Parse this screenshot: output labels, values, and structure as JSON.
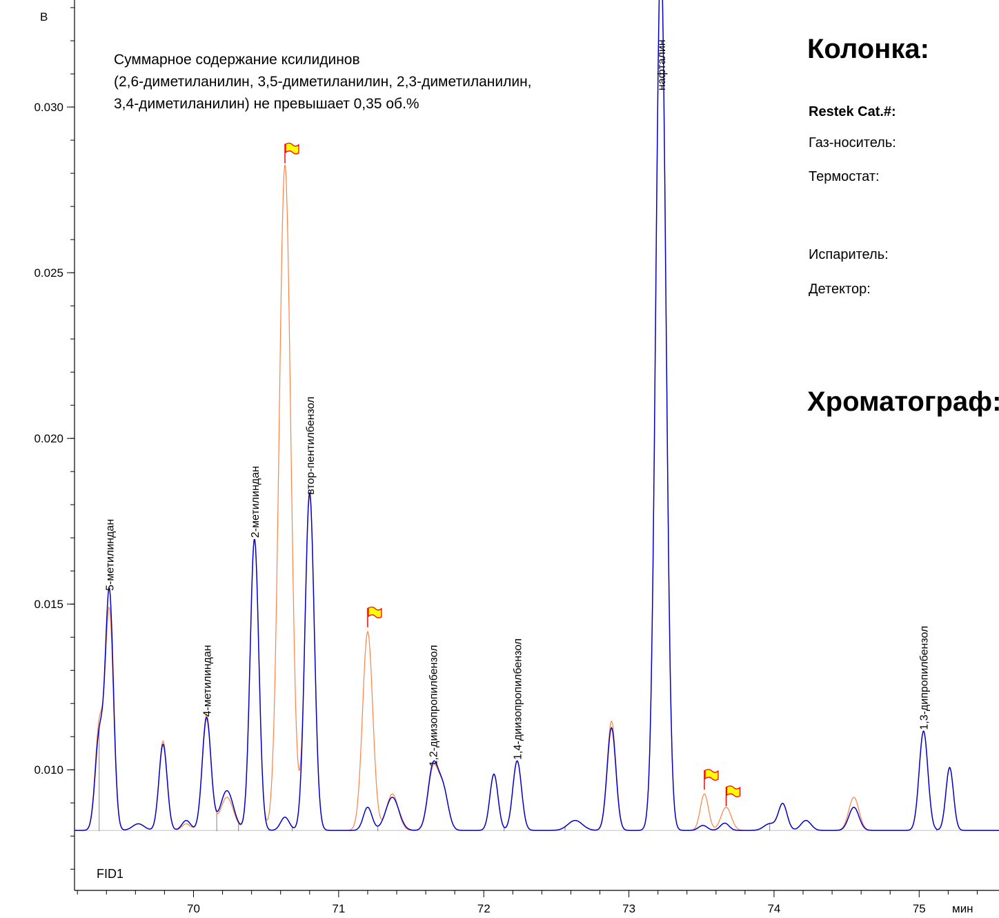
{
  "chart_data": {
    "type": "line",
    "title": "",
    "detector": "FID1",
    "ylabel": "В",
    "xlabel": "мин",
    "xlim": [
      69.18,
      75.55
    ],
    "ylim": [
      0.00636,
      0.03323
    ],
    "x_ticks": [
      70,
      71,
      72,
      73,
      74,
      75
    ],
    "y_ticks": [
      0.01,
      0.015,
      0.02,
      0.025,
      0.03
    ],
    "y_tick_labels": [
      "0.010",
      "0.015",
      "0.020",
      "0.025",
      "0.030"
    ],
    "baseline": 0.00817,
    "legend": "none",
    "grid": false,
    "note_lines": [
      "Суммарное содержание ксилидинов",
      "(2,6-диметиланилин, 3,5-диметиланилин, 2,3-диметиланилин,",
      "3,4-диметиланилин) не превышает 0,35 об.%"
    ],
    "series": [
      {
        "color": "#0000cc",
        "peaks": [
          {
            "x": 69.35,
            "h": 0.0028,
            "w": 0.028
          },
          {
            "x": 69.42,
            "h": 0.0072,
            "w": 0.028
          },
          {
            "x": 69.62,
            "h": 0.0002,
            "w": 0.04
          },
          {
            "x": 69.79,
            "h": 0.0026,
            "w": 0.028
          },
          {
            "x": 69.95,
            "h": 0.0003,
            "w": 0.03
          },
          {
            "x": 70.09,
            "h": 0.0034,
            "w": 0.03
          },
          {
            "x": 70.23,
            "h": 0.0012,
            "w": 0.045
          },
          {
            "x": 70.42,
            "h": 0.0088,
            "w": 0.03
          },
          {
            "x": 70.63,
            "h": 0.0004,
            "w": 0.03
          },
          {
            "x": 70.8,
            "h": 0.0102,
            "w": 0.032
          },
          {
            "x": 71.2,
            "h": 0.0007,
            "w": 0.03
          },
          {
            "x": 71.37,
            "h": 0.001,
            "w": 0.045
          },
          {
            "x": 71.65,
            "h": 0.0019,
            "w": 0.035
          },
          {
            "x": 71.72,
            "h": 0.0012,
            "w": 0.035
          },
          {
            "x": 72.07,
            "h": 0.0017,
            "w": 0.028
          },
          {
            "x": 72.23,
            "h": 0.0021,
            "w": 0.03
          },
          {
            "x": 72.63,
            "h": 0.0003,
            "w": 0.05
          },
          {
            "x": 72.88,
            "h": 0.0031,
            "w": 0.03
          },
          {
            "x": 73.22,
            "h": 0.0265,
            "w": 0.035
          },
          {
            "x": 73.51,
            "h": 0.00015,
            "w": 0.03
          },
          {
            "x": 73.66,
            "h": 0.00022,
            "w": 0.03
          },
          {
            "x": 73.97,
            "h": 0.0002,
            "w": 0.04
          },
          {
            "x": 74.06,
            "h": 0.0008,
            "w": 0.03
          },
          {
            "x": 74.22,
            "h": 0.0003,
            "w": 0.035
          },
          {
            "x": 74.55,
            "h": 0.0007,
            "w": 0.035
          },
          {
            "x": 75.03,
            "h": 0.003,
            "w": 0.03
          },
          {
            "x": 75.21,
            "h": 0.0019,
            "w": 0.026
          }
        ]
      },
      {
        "color": "#ff8040",
        "peaks": [
          {
            "x": 69.35,
            "h": 0.0031,
            "w": 0.028
          },
          {
            "x": 69.42,
            "h": 0.0066,
            "w": 0.028
          },
          {
            "x": 69.62,
            "h": 0.0002,
            "w": 0.04
          },
          {
            "x": 69.79,
            "h": 0.0027,
            "w": 0.028
          },
          {
            "x": 69.95,
            "h": 0.0002,
            "w": 0.03
          },
          {
            "x": 70.09,
            "h": 0.0035,
            "w": 0.03
          },
          {
            "x": 70.23,
            "h": 0.001,
            "w": 0.045
          },
          {
            "x": 70.42,
            "h": 0.0088,
            "w": 0.03
          },
          {
            "x": 70.63,
            "h": 0.0201,
            "w": 0.04
          },
          {
            "x": 70.8,
            "h": 0.0101,
            "w": 0.032
          },
          {
            "x": 71.2,
            "h": 0.006,
            "w": 0.035
          },
          {
            "x": 71.37,
            "h": 0.0011,
            "w": 0.04
          },
          {
            "x": 71.65,
            "h": 0.0018,
            "w": 0.035
          },
          {
            "x": 71.72,
            "h": 0.0012,
            "w": 0.035
          },
          {
            "x": 72.07,
            "h": 0.0017,
            "w": 0.028
          },
          {
            "x": 72.23,
            "h": 0.0021,
            "w": 0.03
          },
          {
            "x": 72.63,
            "h": 0.0003,
            "w": 0.05
          },
          {
            "x": 72.88,
            "h": 0.0033,
            "w": 0.03
          },
          {
            "x": 73.22,
            "h": 0.0265,
            "w": 0.035
          },
          {
            "x": 73.52,
            "h": 0.0011,
            "w": 0.028
          },
          {
            "x": 73.67,
            "h": 0.0007,
            "w": 0.035
          },
          {
            "x": 73.97,
            "h": 0.0002,
            "w": 0.04
          },
          {
            "x": 74.06,
            "h": 0.0008,
            "w": 0.03
          },
          {
            "x": 74.22,
            "h": 0.0003,
            "w": 0.035
          },
          {
            "x": 74.55,
            "h": 0.001,
            "w": 0.035
          },
          {
            "x": 75.03,
            "h": 0.003,
            "w": 0.03
          },
          {
            "x": 75.21,
            "h": 0.0019,
            "w": 0.026
          }
        ]
      }
    ],
    "peak_labels": [
      {
        "x": 69.42,
        "y": 0.0154,
        "text": "5-метилиндан"
      },
      {
        "x": 70.09,
        "y": 0.0116,
        "text": "4-метилиндан"
      },
      {
        "x": 70.42,
        "y": 0.017,
        "text": "2-метилиндан"
      },
      {
        "x": 70.8,
        "y": 0.0183,
        "text": "втор-пентилбензол"
      },
      {
        "x": 71.65,
        "y": 0.0101,
        "text": "1,2-диизопропилбензол"
      },
      {
        "x": 72.23,
        "y": 0.0103,
        "text": "1,4-диизопропилбензол"
      },
      {
        "x": 73.22,
        "y": 0.0305,
        "text": "нафталин"
      },
      {
        "x": 75.03,
        "y": 0.0112,
        "text": "1,3-дипропилбензол"
      }
    ],
    "flags": [
      {
        "x": 70.63,
        "y": 0.0283
      },
      {
        "x": 71.2,
        "y": 0.0143
      },
      {
        "x": 73.52,
        "y": 0.0094
      },
      {
        "x": 73.67,
        "y": 0.0089
      }
    ],
    "integration_marks": [
      69.35,
      70.16,
      70.31,
      70.52,
      70.68,
      71.27,
      72.14,
      72.56,
      73.97,
      75.12
    ]
  },
  "info_panel": {
    "column_heading": "Колонка:",
    "catalog_label": "Restek Cat.#:",
    "carrier_gas_label": "Газ-носитель:",
    "oven_label": "Термостат:",
    "injector_label": "Испаритель:",
    "detector_label": "Детектор:",
    "instrument_heading": "Хроматограф:"
  },
  "colors": {
    "series_blue": "#0000cc",
    "series_orange": "#ff8040",
    "flag_fill": "#ffff00",
    "flag_pole": "#ff0000",
    "baseline": "#c0c0c0"
  }
}
